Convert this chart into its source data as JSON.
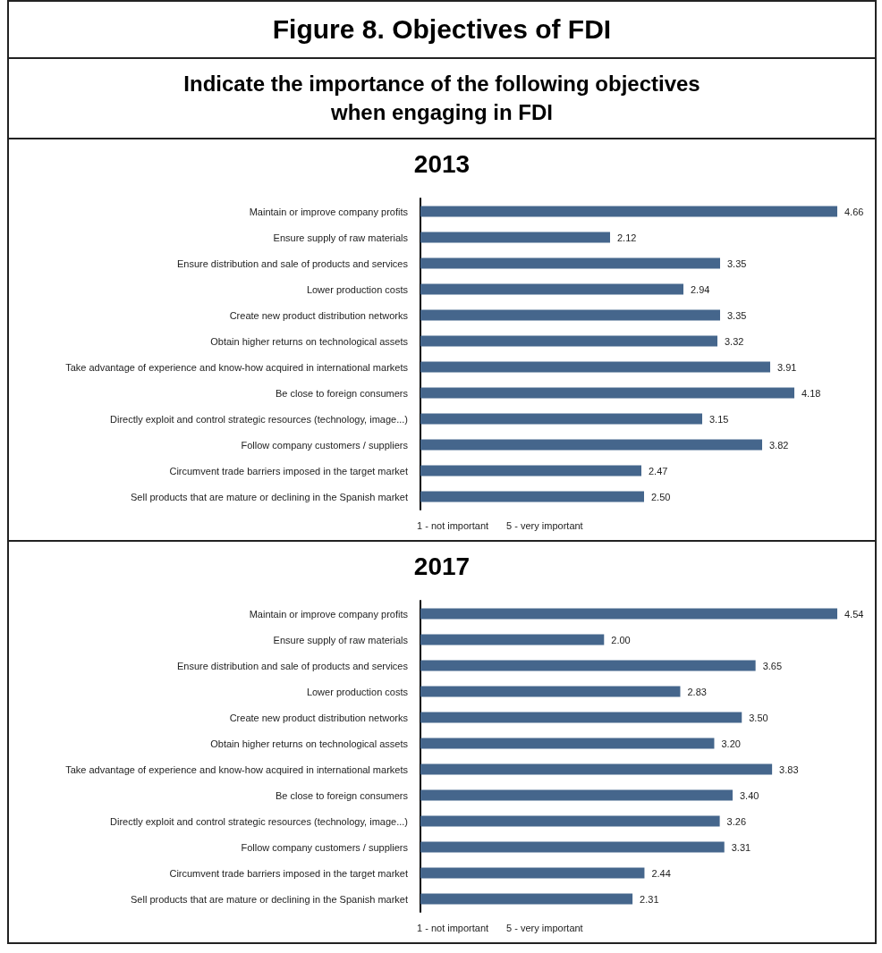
{
  "chart_data": [
    {
      "type": "other",
      "title": "Figure 8. Objectives of FDI",
      "subtitle": "Indicate the importance of the following objectives when engaging in FDI"
    },
    {
      "type": "bar",
      "title": "2013",
      "orientation": "horizontal",
      "color": "#45668c",
      "value_labels": [
        "4.66",
        "2.12",
        "3.35",
        "2.94",
        "3.35",
        "3.32",
        "3.91",
        "4.18",
        "3.15",
        "3.82",
        "2.47",
        "2.50"
      ],
      "categories": [
        "Maintain or improve company profits",
        "Ensure supply of raw materials",
        "Ensure distribution and sale of products and services",
        "Lower production costs",
        "Create new product distribution networks",
        "Obtain higher returns on technological assets",
        "Take advantage of experience and know-how acquired in international markets",
        "Be close to foreign consumers",
        "Directly exploit and control strategic resources (technology, image...)",
        "Follow company customers / suppliers",
        "Circumvent trade barriers imposed in the target market",
        "Sell products that are mature or declining in the Spanish market"
      ],
      "values": [
        4.66,
        2.12,
        3.35,
        2.94,
        3.35,
        3.32,
        3.91,
        4.18,
        3.15,
        3.82,
        2.47,
        2.5
      ],
      "annotations": [
        "1 - not important",
        "5 - very important"
      ]
    },
    {
      "type": "bar",
      "title": "2017",
      "orientation": "horizontal",
      "color": "#45668c",
      "value_labels": [
        "4.54",
        "2.00",
        "3.65",
        "2.83",
        "3.50",
        "3.20",
        "3.83",
        "3.40",
        "3.26",
        "3.31",
        "2.44",
        "2.31"
      ],
      "categories": [
        "Maintain or improve company profits",
        "Ensure supply of raw materials",
        "Ensure distribution and sale of products and services",
        "Lower production costs",
        "Create new product distribution networks",
        "Obtain higher returns on technological assets",
        "Take advantage of experience and know-how acquired in international markets",
        "Be close to foreign consumers",
        "Directly exploit and control strategic resources (technology, image...)",
        "Follow company customers / suppliers",
        "Circumvent trade barriers imposed in the target market",
        "Sell products that are mature or declining in the Spanish market"
      ],
      "values": [
        4.54,
        2.0,
        3.65,
        2.83,
        3.5,
        3.2,
        3.83,
        3.4,
        3.26,
        3.31,
        2.44,
        2.31
      ],
      "annotations": [
        "1 - not important",
        "5 - very important"
      ]
    }
  ]
}
